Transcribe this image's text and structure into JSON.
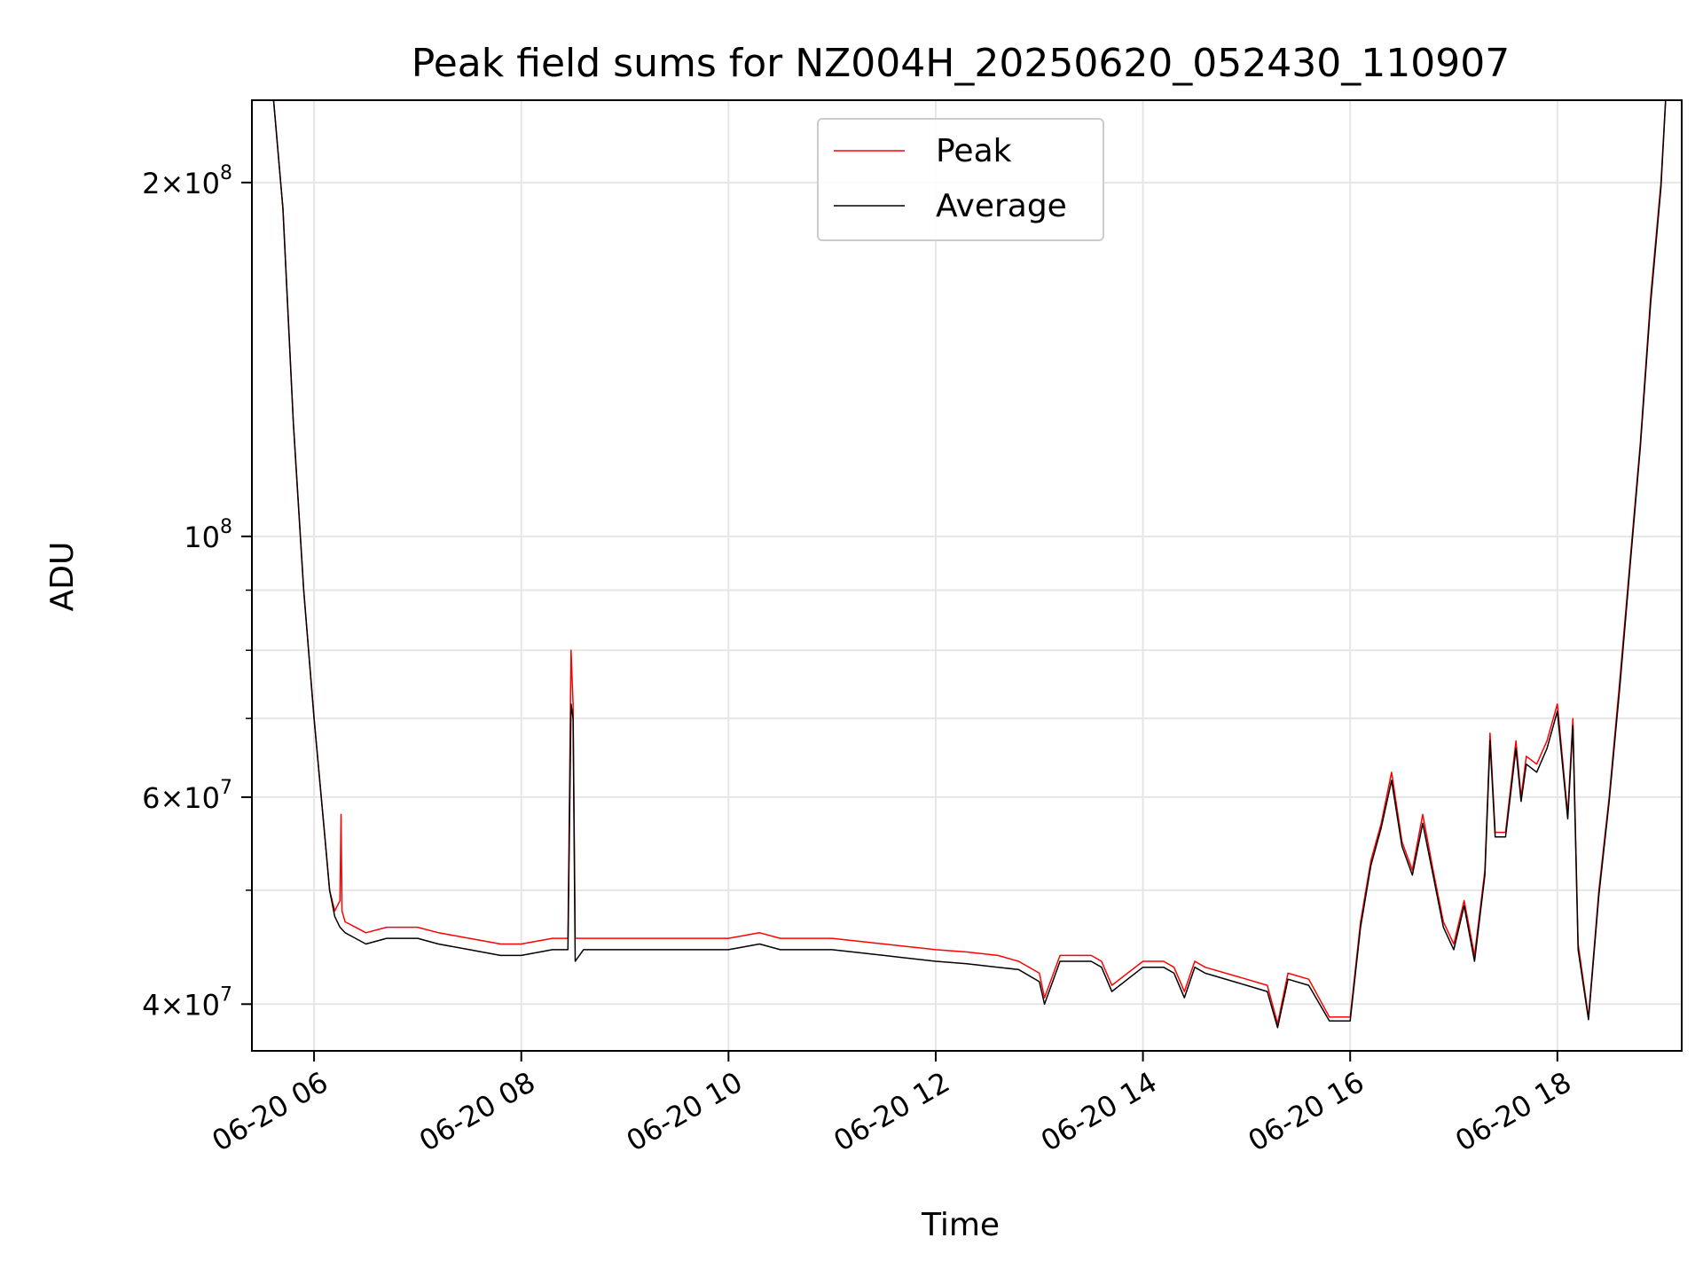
{
  "chart_data": {
    "type": "line",
    "title": "Peak field sums for NZ004H_20250620_052430_110907",
    "xlabel": "Time",
    "ylabel": "ADU",
    "y_scale": "log",
    "ylim": [
      36500000,
      235000000
    ],
    "xlim_hours": [
      5.4,
      19.2
    ],
    "grid": true,
    "legend_position": "top-center",
    "x_ticks": [
      {
        "value": 6,
        "label": "06-20 06"
      },
      {
        "value": 8,
        "label": "06-20 08"
      },
      {
        "value": 10,
        "label": "06-20 10"
      },
      {
        "value": 12,
        "label": "06-20 12"
      },
      {
        "value": 14,
        "label": "06-20 14"
      },
      {
        "value": 16,
        "label": "06-20 16"
      },
      {
        "value": 18,
        "label": "06-20 18"
      }
    ],
    "y_ticks": [
      {
        "value": 40000000,
        "mantissa": "4",
        "exp": "7"
      },
      {
        "value": 60000000,
        "mantissa": "6",
        "exp": "7"
      },
      {
        "value": 100000000,
        "mantissa": "",
        "exp": "8"
      },
      {
        "value": 200000000,
        "mantissa": "2",
        "exp": "8"
      }
    ],
    "y_minor_ticks": [
      50000000,
      70000000,
      80000000,
      90000000
    ],
    "series": [
      {
        "name": "Peak",
        "color": "#ff0000",
        "x": [
          5.6,
          5.7,
          5.8,
          5.9,
          6.0,
          6.1,
          6.15,
          6.2,
          6.25,
          6.26,
          6.27,
          6.3,
          6.4,
          6.5,
          6.7,
          7.0,
          7.2,
          7.5,
          7.8,
          8.0,
          8.3,
          8.45,
          8.48,
          8.5,
          8.52,
          8.6,
          9.0,
          9.5,
          10.0,
          10.3,
          10.5,
          11.0,
          11.5,
          12.0,
          12.3,
          12.6,
          12.8,
          13.0,
          13.05,
          13.2,
          13.5,
          13.6,
          13.7,
          14.0,
          14.2,
          14.3,
          14.4,
          14.5,
          14.6,
          15.0,
          15.2,
          15.3,
          15.4,
          15.6,
          15.8,
          16.0,
          16.1,
          16.2,
          16.3,
          16.4,
          16.5,
          16.6,
          16.7,
          16.8,
          16.9,
          17.0,
          17.1,
          17.2,
          17.3,
          17.35,
          17.4,
          17.5,
          17.6,
          17.65,
          17.7,
          17.8,
          17.9,
          18.0,
          18.1,
          18.15,
          18.2,
          18.3,
          18.4,
          18.5,
          18.6,
          18.7,
          18.8,
          18.9,
          19.0,
          19.05
        ],
        "y": [
          240000000,
          190000000,
          125000000,
          90000000,
          70000000,
          56000000,
          50000000,
          48000000,
          49000000,
          58000000,
          48000000,
          47000000,
          46500000,
          46000000,
          46500000,
          46500000,
          46000000,
          45500000,
          45000000,
          45000000,
          45500000,
          45500000,
          80000000,
          72000000,
          45500000,
          45500000,
          45500000,
          45500000,
          45500000,
          46000000,
          45500000,
          45500000,
          45000000,
          44500000,
          44300000,
          44000000,
          43500000,
          42500000,
          40500000,
          44000000,
          44000000,
          43500000,
          41500000,
          43500000,
          43500000,
          43000000,
          41000000,
          43500000,
          43000000,
          42000000,
          41500000,
          38500000,
          42500000,
          42000000,
          39000000,
          39000000,
          47000000,
          53000000,
          57000000,
          63000000,
          55000000,
          52000000,
          58000000,
          52000000,
          47000000,
          45000000,
          49000000,
          44000000,
          52000000,
          68000000,
          56000000,
          56000000,
          67000000,
          60000000,
          65000000,
          64000000,
          67000000,
          72000000,
          58000000,
          70000000,
          45000000,
          39000000,
          50000000,
          60000000,
          75000000,
          95000000,
          120000000,
          160000000,
          200000000,
          240000000
        ]
      },
      {
        "name": "Average",
        "color": "#000000",
        "x": [
          5.6,
          5.7,
          5.8,
          5.9,
          6.0,
          6.1,
          6.15,
          6.2,
          6.25,
          6.3,
          6.4,
          6.5,
          6.7,
          7.0,
          7.2,
          7.5,
          7.8,
          8.0,
          8.3,
          8.45,
          8.48,
          8.5,
          8.52,
          8.6,
          9.0,
          9.5,
          10.0,
          10.3,
          10.5,
          11.0,
          11.5,
          12.0,
          12.3,
          12.6,
          12.8,
          13.0,
          13.05,
          13.2,
          13.5,
          13.6,
          13.7,
          14.0,
          14.2,
          14.3,
          14.4,
          14.5,
          14.6,
          15.0,
          15.2,
          15.3,
          15.4,
          15.6,
          15.8,
          16.0,
          16.1,
          16.2,
          16.3,
          16.4,
          16.5,
          16.6,
          16.7,
          16.8,
          16.9,
          17.0,
          17.1,
          17.2,
          17.3,
          17.35,
          17.4,
          17.5,
          17.6,
          17.65,
          17.7,
          17.8,
          17.9,
          18.0,
          18.1,
          18.15,
          18.2,
          18.3,
          18.4,
          18.5,
          18.6,
          18.7,
          18.8,
          18.9,
          19.0,
          19.05
        ],
        "y": [
          240000000,
          190000000,
          125000000,
          90000000,
          70000000,
          56000000,
          50000000,
          47500000,
          46500000,
          46000000,
          45500000,
          45000000,
          45500000,
          45500000,
          45000000,
          44500000,
          44000000,
          44000000,
          44500000,
          44500000,
          72000000,
          70000000,
          43500000,
          44500000,
          44500000,
          44500000,
          44500000,
          45000000,
          44500000,
          44500000,
          44000000,
          43500000,
          43300000,
          43000000,
          42800000,
          41800000,
          40000000,
          43500000,
          43500000,
          43000000,
          41000000,
          43000000,
          43000000,
          42500000,
          40500000,
          43000000,
          42500000,
          41500000,
          41000000,
          38200000,
          42000000,
          41500000,
          38700000,
          38700000,
          46500000,
          52500000,
          56500000,
          62000000,
          54500000,
          51500000,
          57000000,
          51500000,
          46500000,
          44500000,
          48500000,
          43500000,
          51500000,
          67000000,
          55500000,
          55500000,
          66000000,
          59500000,
          64000000,
          63000000,
          66000000,
          71000000,
          57500000,
          69000000,
          44500000,
          38800000,
          49500000,
          59500000,
          74000000,
          94000000,
          119000000,
          158000000,
          198000000,
          240000000
        ]
      }
    ]
  }
}
